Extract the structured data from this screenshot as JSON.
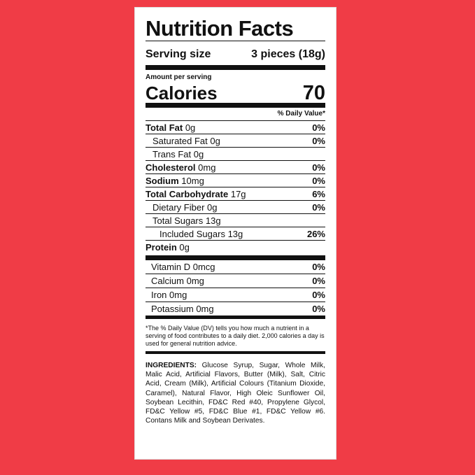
{
  "header": {
    "title": "Nutrition Facts",
    "serving_label": "Serving size",
    "serving_value": "3 pieces (18g)"
  },
  "calories": {
    "amount_label": "Amount per serving",
    "label": "Calories",
    "value": "70"
  },
  "dv_header": "% Daily Value*",
  "nutrients": [
    {
      "label": "Total Fat",
      "amount": "0g",
      "dv": "0%"
    },
    {
      "label": "Saturated Fat",
      "amount": "0g",
      "dv": "0%"
    },
    {
      "label": "Trans Fat",
      "amount": "0g"
    },
    {
      "label": "Cholesterol",
      "amount": "0mg",
      "dv": "0%"
    },
    {
      "label": "Sodium",
      "amount": "10mg",
      "dv": "0%"
    },
    {
      "label": "Total Carbohydrate",
      "amount": "17g",
      "dv": "6%"
    },
    {
      "label": "Dietary Fiber",
      "amount": "0g",
      "dv": "0%"
    },
    {
      "label": "Total Sugars",
      "amount": "13g"
    },
    {
      "label": "Included Sugars",
      "amount": "13g",
      "dv": "26%"
    },
    {
      "label": "Protein",
      "amount": "0g"
    }
  ],
  "vitamins": [
    {
      "label": "Vitamin D",
      "amount": "0mcg",
      "dv": "0%"
    },
    {
      "label": "Calcium",
      "amount": "0mg",
      "dv": "0%"
    },
    {
      "label": "Iron",
      "amount": "0mg",
      "dv": "0%"
    },
    {
      "label": "Potassium",
      "amount": "0mg",
      "dv": "0%"
    }
  ],
  "footnote": "*The % Daily Value (DV) tells you how much a nutrient in a serving of food contributes to a daily diet. 2,000 calories a day is used for general nutrition advice.",
  "ingredients": {
    "label": "INGREDIENTS:",
    "text": "Glucose Syrup, Sugar, Whole Milk, Malic Acid, Artificial Flavors, Butter (Milk), Salt, Citric Acid, Cream (Milk), Artificial Colours (Titanium Dioxide, Caramel), Natural Flavor, High Oleic Sunflower Oil, Soybean Lecithin, FD&C Red #40, Propylene Glycol, FD&C Yellow #5, FD&C Blue #1, FD&C Yellow #6. Contans Milk and Soybean Derivates."
  }
}
